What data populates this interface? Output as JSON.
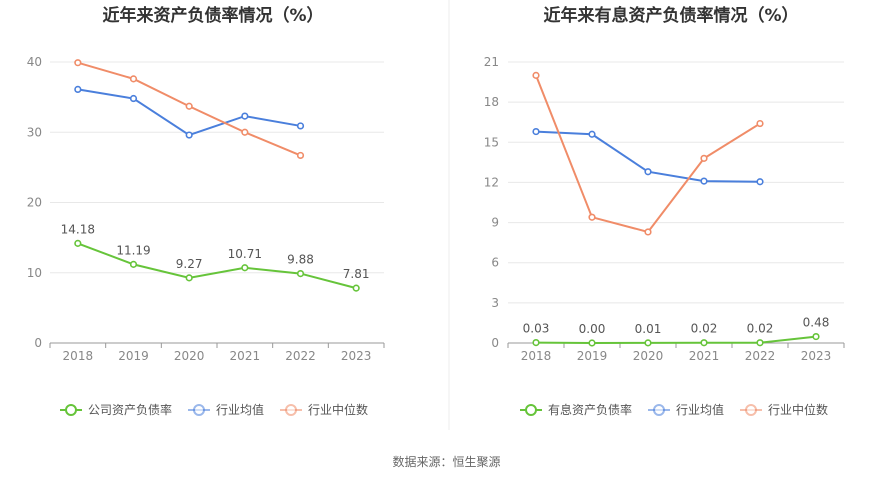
{
  "source_note": "数据来源：恒生聚源",
  "colors": {
    "company": "#66c43a",
    "industry_avg": "#4a7fdc",
    "industry_median": "#f08c68"
  },
  "chart_data": [
    {
      "type": "line",
      "title": "近年来资产负债率情况（%）",
      "categories": [
        "2018",
        "2019",
        "2020",
        "2021",
        "2022",
        "2023"
      ],
      "ylim": [
        0,
        40
      ],
      "yticks": [
        0,
        10,
        20,
        30,
        40
      ],
      "grid": true,
      "legend_position": "bottom",
      "series": [
        {
          "name": "公司资产负债率",
          "color": "#66c43a",
          "values": [
            14.18,
            11.19,
            9.27,
            10.71,
            9.88,
            7.81
          ],
          "labels": [
            "14.18",
            "11.19",
            "9.27",
            "10.71",
            "9.88",
            "7.81"
          ]
        },
        {
          "name": "行业均值",
          "color": "#4a7fdc",
          "values": [
            36.1,
            34.8,
            29.6,
            32.3,
            30.9,
            null
          ]
        },
        {
          "name": "行业中位数",
          "color": "#f08c68",
          "values": [
            39.9,
            37.6,
            33.7,
            30.0,
            26.7,
            null
          ]
        }
      ]
    },
    {
      "type": "line",
      "title": "近年来有息资产负债率情况（%）",
      "categories": [
        "2018",
        "2019",
        "2020",
        "2021",
        "2022",
        "2023"
      ],
      "ylim": [
        0,
        21
      ],
      "yticks": [
        0,
        3,
        6,
        9,
        12,
        15,
        18,
        21
      ],
      "grid": true,
      "legend_position": "bottom",
      "series": [
        {
          "name": "有息资产负债率",
          "color": "#66c43a",
          "values": [
            0.03,
            0.0,
            0.01,
            0.02,
            0.02,
            0.48
          ],
          "labels": [
            "0.03",
            "0.00",
            "0.01",
            "0.02",
            "0.02",
            "0.48"
          ]
        },
        {
          "name": "行业均值",
          "color": "#4a7fdc",
          "values": [
            15.8,
            15.6,
            12.8,
            12.1,
            12.05,
            null
          ]
        },
        {
          "name": "行业中位数",
          "color": "#f08c68",
          "values": [
            20.0,
            9.4,
            8.3,
            13.8,
            16.4,
            null
          ]
        }
      ]
    }
  ]
}
